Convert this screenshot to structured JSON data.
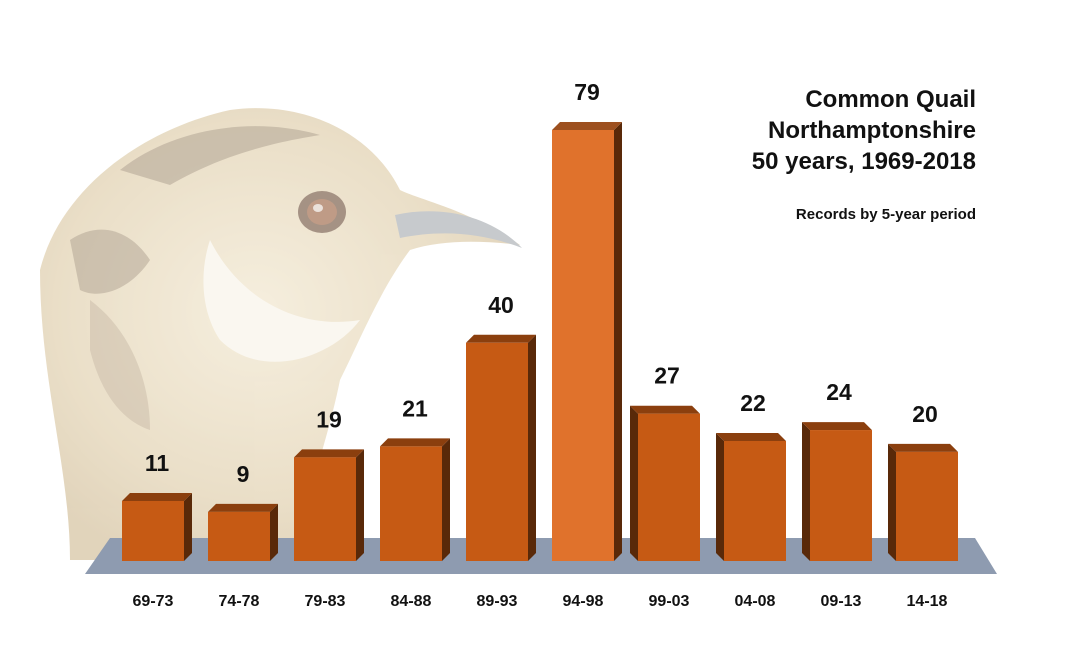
{
  "chart_data": {
    "type": "bar",
    "title": [
      "Common Quail",
      "Northamptonshire",
      "50 years, 1969-2018"
    ],
    "subtitle": "Records by 5-year period",
    "categories": [
      "69-73",
      "74-78",
      "79-83",
      "84-88",
      "89-93",
      "94-98",
      "99-03",
      "04-08",
      "09-13",
      "14-18"
    ],
    "values": [
      11,
      9,
      19,
      21,
      40,
      79,
      27,
      22,
      24,
      20
    ],
    "ylim": [
      0,
      80
    ],
    "grid": false,
    "legend": "none",
    "bar_color": "#c65a14",
    "highlight_color": "#e0722c",
    "floor_color": "#8e9bb0"
  }
}
